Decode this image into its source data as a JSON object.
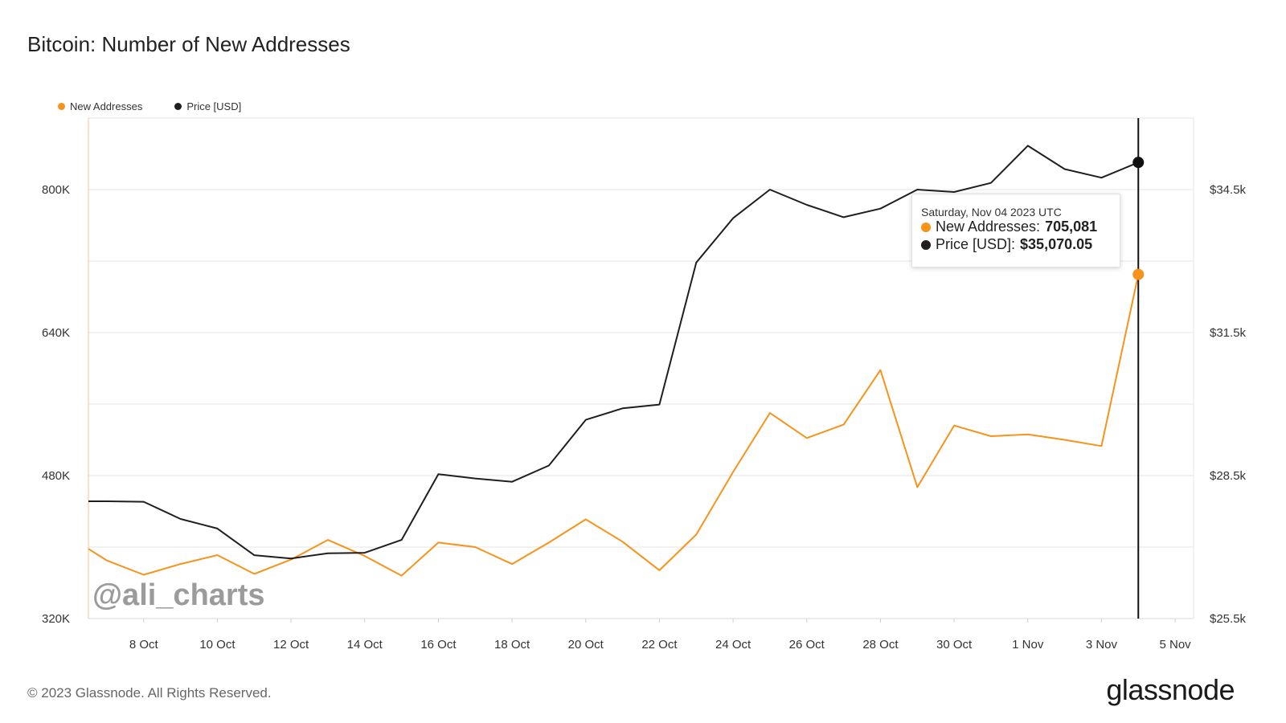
{
  "title": "Bitcoin: Number of New Addresses",
  "legend": [
    {
      "label": "New Addresses",
      "color": "#f7931a"
    },
    {
      "label": "Price [USD]",
      "color": "#1f1f1f"
    }
  ],
  "watermark": "@ali_charts",
  "footer": "© 2023 Glassnode. All Rights Reserved.",
  "brand": "glassnode",
  "tooltip": {
    "date": "Saturday, Nov 04 2023 UTC",
    "new_addresses_label": "New Addresses:",
    "new_addresses_value": "705,081",
    "price_label": "Price [USD]:",
    "price_value": "$35,070.05"
  },
  "chart_data": {
    "type": "line",
    "x": [
      "2023-10-07",
      "2023-10-08",
      "2023-10-09",
      "2023-10-10",
      "2023-10-11",
      "2023-10-12",
      "2023-10-13",
      "2023-10-14",
      "2023-10-15",
      "2023-10-16",
      "2023-10-17",
      "2023-10-18",
      "2023-10-19",
      "2023-10-20",
      "2023-10-21",
      "2023-10-22",
      "2023-10-23",
      "2023-10-24",
      "2023-10-25",
      "2023-10-26",
      "2023-10-27",
      "2023-10-28",
      "2023-10-29",
      "2023-10-30",
      "2023-10-31",
      "2023-11-01",
      "2023-11-02",
      "2023-11-03",
      "2023-11-04"
    ],
    "x_ticks": [
      "8 Oct",
      "10 Oct",
      "12 Oct",
      "14 Oct",
      "16 Oct",
      "18 Oct",
      "20 Oct",
      "22 Oct",
      "24 Oct",
      "26 Oct",
      "28 Oct",
      "30 Oct",
      "1 Nov",
      "3 Nov",
      "5 Nov"
    ],
    "series": [
      {
        "name": "New Addresses",
        "axis": "left",
        "color": "#f7931a",
        "values": [
          385000,
          369000,
          381000,
          391000,
          370000,
          386000,
          408000,
          390000,
          368000,
          405000,
          400000,
          381000,
          405000,
          431000,
          406000,
          374000,
          414000,
          484000,
          550000,
          522000,
          537000,
          598000,
          467000,
          536000,
          524000,
          526000,
          520000,
          513000,
          705081
        ]
      },
      {
        "name": "Price [USD]",
        "axis": "right",
        "color": "#1f1f1f",
        "values": [
          27960,
          27950,
          27590,
          27390,
          26830,
          26760,
          26870,
          26880,
          27150,
          28530,
          28440,
          28370,
          28710,
          29670,
          29910,
          29990,
          32970,
          33900,
          34500,
          34180,
          33920,
          34100,
          34500,
          34450,
          34640,
          35420,
          34930,
          34750,
          35070.05
        ]
      }
    ],
    "y_left": {
      "ticks": [
        "320K",
        "480K",
        "640K",
        "800K"
      ],
      "ylim": [
        320000,
        880000
      ]
    },
    "y_right": {
      "ticks": [
        "$25.5k",
        "$28.5k",
        "$31.5k",
        "$34.5k"
      ],
      "ylim": [
        25500,
        36000
      ]
    },
    "grid": true,
    "legend_position": "top-left",
    "hover_date": "2023-11-04"
  }
}
